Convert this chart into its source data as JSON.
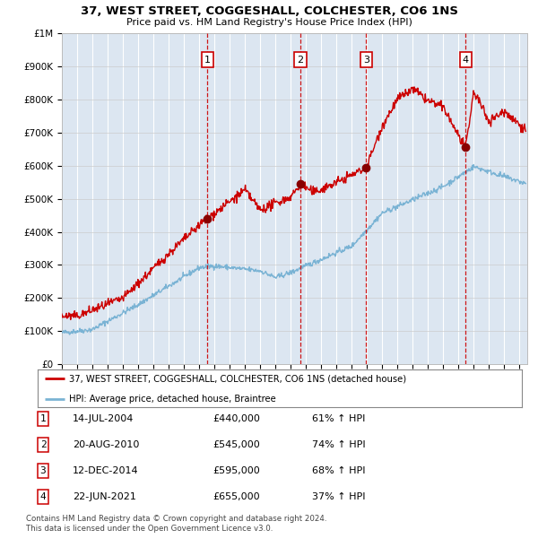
{
  "title1": "37, WEST STREET, COGGESHALL, COLCHESTER, CO6 1NS",
  "title2": "Price paid vs. HM Land Registry's House Price Index (HPI)",
  "plot_bg_color": "#dce6f1",
  "legend_label_red": "37, WEST STREET, COGGESHALL, COLCHESTER, CO6 1NS (detached house)",
  "legend_label_blue": "HPI: Average price, detached house, Braintree",
  "transactions": [
    {
      "label": "1",
      "date": "14-JUL-2004",
      "price": "£440,000",
      "pct": "61% ↑ HPI",
      "x_year": 2004.54,
      "price_val": 440000
    },
    {
      "label": "2",
      "date": "20-AUG-2010",
      "price": "£545,000",
      "pct": "74% ↑ HPI",
      "x_year": 2010.63,
      "price_val": 545000
    },
    {
      "label": "3",
      "date": "12-DEC-2014",
      "price": "£595,000",
      "pct": "68% ↑ HPI",
      "x_year": 2014.95,
      "price_val": 595000
    },
    {
      "label": "4",
      "date": "22-JUN-2021",
      "price": "£655,000",
      "pct": "37% ↑ HPI",
      "x_year": 2021.47,
      "price_val": 655000
    }
  ],
  "footer1": "Contains HM Land Registry data © Crown copyright and database right 2024.",
  "footer2": "This data is licensed under the Open Government Licence v3.0.",
  "ylim_max": 1000000,
  "ylim_min": 0,
  "xlim_min": 1995,
  "xlim_max": 2025.5
}
